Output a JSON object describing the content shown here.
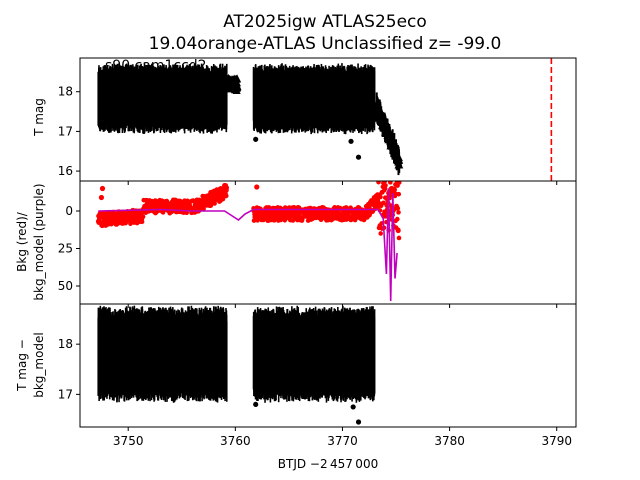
{
  "title": {
    "line1": "AT2025igw  ATLAS25eco",
    "line2": "19.04orange-ATLAS Unclassified z= -99.0"
  },
  "colors": {
    "data": "#000000",
    "bkg": "#ff0000",
    "bkg_model": "#bf00bf",
    "marker_line": "#ff0000"
  },
  "chart_data": [
    {
      "type": "scatter",
      "panel": "top",
      "ylabel": "T mag",
      "annotation": "s90 cam1ccd2",
      "y_inverted": true,
      "xlim": [
        3745.5,
        3791.8
      ],
      "ylim": [
        18.85,
        15.75
      ],
      "yticks": [
        16,
        17,
        18
      ],
      "vertical_line": {
        "x": 3789.5,
        "style": "dashed"
      },
      "series": [
        {
          "segment": "orbit-1 flux",
          "x_range": [
            3747.2,
            3759.2
          ],
          "y_range": [
            17.0,
            18.65
          ],
          "marker": "dot"
        },
        {
          "segment": "orbit-1 tail",
          "x_range": [
            3759.2,
            3760.2
          ],
          "y_range": [
            18.1,
            18.3
          ],
          "marker": "triangle"
        },
        {
          "segment": "orbit-2 flux",
          "x_range": [
            3761.7,
            3773.0
          ],
          "y_range": [
            17.0,
            18.65
          ],
          "marker": "dot"
        },
        {
          "segment": "rise",
          "x_range": [
            3773.2,
            3775.3
          ],
          "y_range": [
            15.8,
            18.0
          ],
          "marker": "triangle"
        },
        {
          "segment": "outliers",
          "x": [
            3761.9,
            3771.5,
            3770.8
          ],
          "y": [
            16.8,
            16.35,
            16.75
          ],
          "marker": "dot"
        }
      ]
    },
    {
      "type": "line",
      "panel": "middle",
      "ylabel_line1": "Bkg (red)/",
      "ylabel_line2": "bkg_model (purple)",
      "xlim": [
        3745.5,
        3791.8
      ],
      "ylim": [
        -20,
        62
      ],
      "yticks": [
        0,
        25,
        50
      ],
      "series": [
        {
          "name": "Bkg",
          "color": "#ff0000",
          "x_range": [
            3747.2,
            3775.3
          ]
        },
        {
          "name": "bkg_model",
          "color": "#bf00bf",
          "x": [
            3747.2,
            3750,
            3753,
            3756,
            3759,
            3760.3,
            3760.9,
            3761.7,
            3765,
            3770,
            3773.3,
            3773.8,
            3774.1,
            3774.3,
            3774.5,
            3774.7,
            3774.9,
            3775.1
          ],
          "y": [
            0,
            -0.5,
            -1,
            0,
            0,
            6,
            2,
            -1,
            -1,
            -1,
            -1,
            5,
            42,
            -15,
            60,
            -12,
            45,
            28
          ]
        }
      ]
    },
    {
      "type": "scatter",
      "panel": "bottom",
      "ylabel_line1": "T mag −",
      "ylabel_line2": "bkg_model",
      "xlabel": "BTJD −2 457 000",
      "y_inverted": true,
      "xlim": [
        3745.5,
        3791.8
      ],
      "ylim": [
        18.8,
        16.35
      ],
      "yticks": [
        17,
        18
      ],
      "xticks": [
        3750,
        3760,
        3770,
        3780,
        3790
      ],
      "series": [
        {
          "segment": "orbit-1",
          "x_range": [
            3747.2,
            3759.2
          ],
          "y_range": [
            16.9,
            18.7
          ],
          "marker": "dot"
        },
        {
          "segment": "orbit-2",
          "x_range": [
            3761.7,
            3773.0
          ],
          "y_range": [
            16.9,
            18.7
          ],
          "marker": "dot"
        },
        {
          "segment": "outliers",
          "x": [
            3761.9,
            3771.5,
            3771.0
          ],
          "y": [
            16.8,
            16.45,
            16.75
          ],
          "marker": "dot"
        }
      ]
    }
  ]
}
